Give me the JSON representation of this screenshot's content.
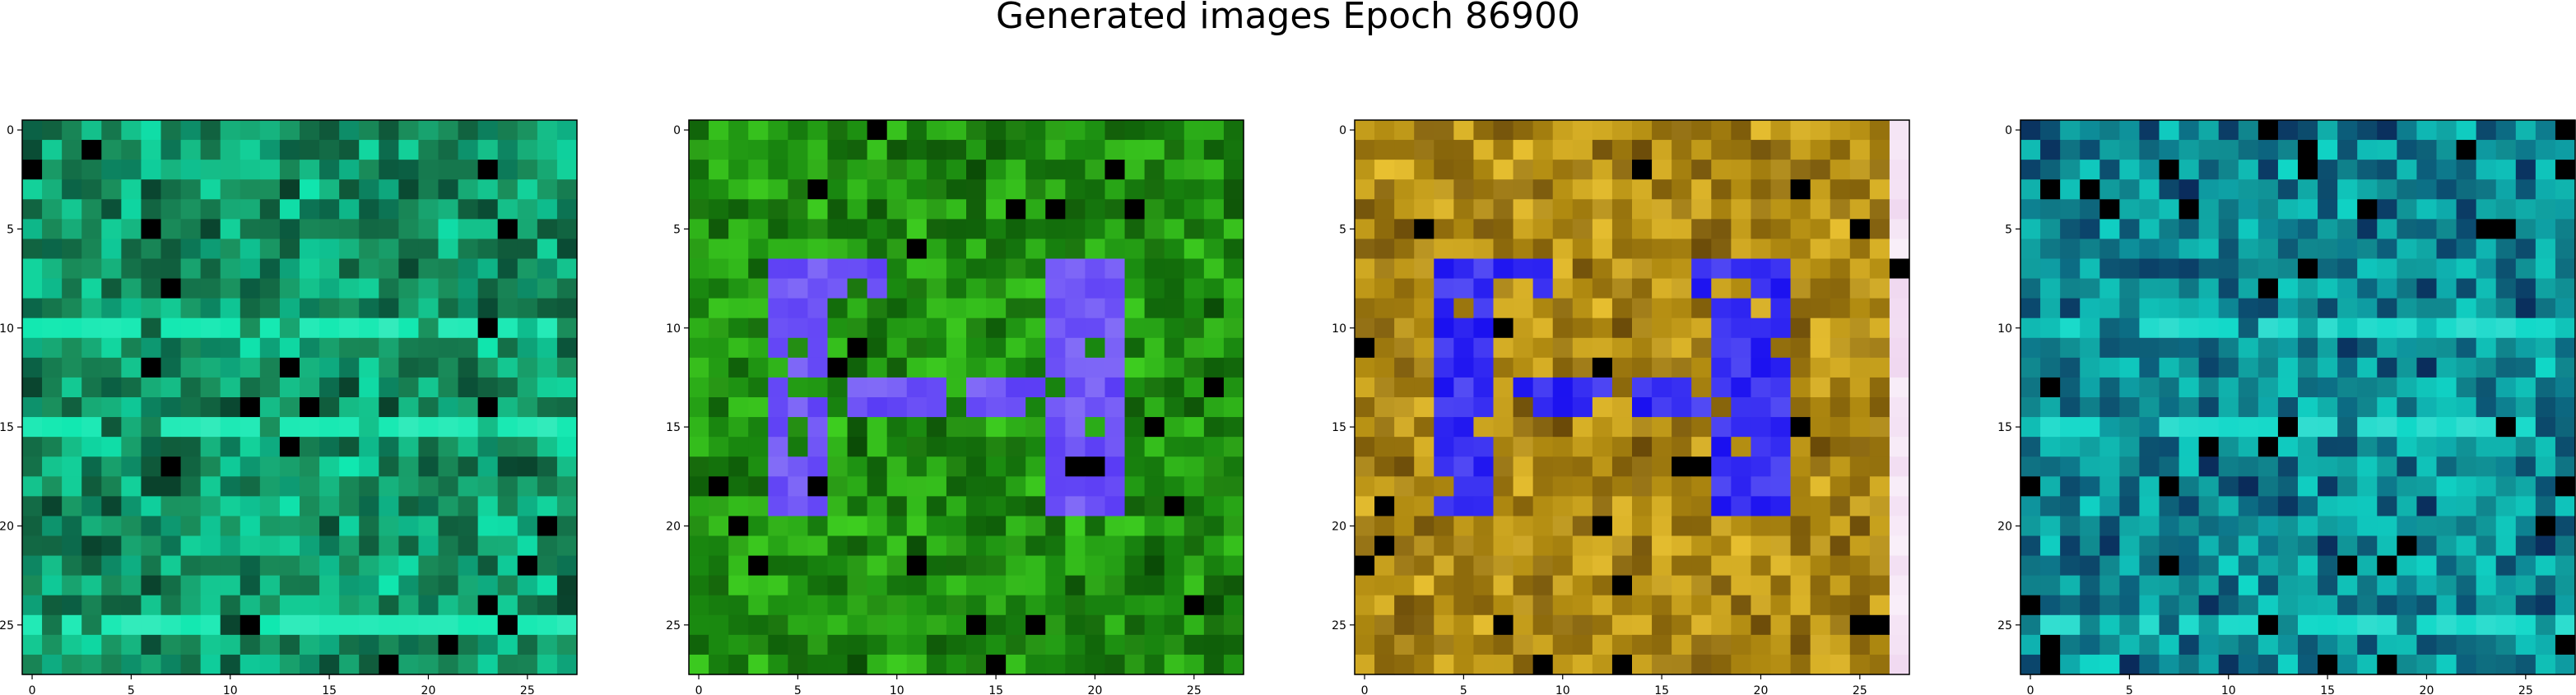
{
  "figure": {
    "title": "Generated images Epoch 86900"
  },
  "chart_data": [
    {
      "type": "heatmap",
      "title": "",
      "xlabel": "",
      "ylabel": "",
      "xlim": [
        -0.5,
        27.5
      ],
      "ylim": [
        27.5,
        -0.5
      ],
      "x_ticks": [
        0,
        5,
        10,
        15,
        20,
        25
      ],
      "y_ticks": [
        0,
        5,
        10,
        15,
        20,
        25
      ],
      "grid": false,
      "size": [
        28,
        28
      ],
      "palette": {
        "base": "#1a8f5c",
        "bright": "#10e8b0",
        "dark": "#0a3f2a",
        "accent": "#1560d0"
      },
      "description_colors": [
        "#1a8f5c",
        "#10e8b0",
        "#0a3f2a",
        "#2aa088",
        "#105a40"
      ]
    },
    {
      "type": "heatmap",
      "title": "",
      "xlabel": "",
      "ylabel": "",
      "xlim": [
        -0.5,
        27.5
      ],
      "ylim": [
        27.5,
        -0.5
      ],
      "x_ticks": [
        0,
        5,
        10,
        15,
        20,
        25
      ],
      "y_ticks": [
        0,
        5,
        10,
        15,
        20,
        25
      ],
      "grid": false,
      "size": [
        28,
        28
      ],
      "palette": {
        "base": "#1a8a10",
        "bright": "#3ed020",
        "dark": "#0a4a06",
        "accent": "#5a3cf5"
      },
      "description_colors": [
        "#1a8a10",
        "#3ed020",
        "#0a4a06",
        "#5a3cf5",
        "#0000ff"
      ]
    },
    {
      "type": "heatmap",
      "title": "",
      "xlabel": "",
      "ylabel": "",
      "xlim": [
        -0.5,
        27.5
      ],
      "ylim": [
        27.5,
        -0.5
      ],
      "x_ticks": [
        0,
        5,
        10,
        15,
        20,
        25
      ],
      "y_ticks": [
        0,
        5,
        10,
        15,
        20,
        25
      ],
      "grid": false,
      "size": [
        28,
        28
      ],
      "palette": {
        "base": "#b08a10",
        "bright": "#e8c030",
        "dark": "#6a4a08",
        "accent": "#1a10f0"
      },
      "description_colors": [
        "#b08a10",
        "#e8c030",
        "#6a4a08",
        "#1a10f0",
        "#f0d8f0"
      ]
    },
    {
      "type": "heatmap",
      "title": "",
      "xlabel": "",
      "ylabel": "",
      "xlim": [
        -0.5,
        27.5
      ],
      "ylim": [
        27.5,
        -0.5
      ],
      "x_ticks": [
        0,
        5,
        10,
        15,
        20,
        25
      ],
      "y_ticks": [
        0,
        5,
        10,
        15,
        20,
        25
      ],
      "grid": false,
      "size": [
        28,
        28
      ],
      "palette": {
        "base": "#108a90",
        "bright": "#10d8c8",
        "dark": "#0a2a5a",
        "accent": "#1a40e0"
      },
      "description_colors": [
        "#108a90",
        "#10d8c8",
        "#0a2a5a",
        "#1a40e0",
        "#0a5a70"
      ]
    }
  ]
}
